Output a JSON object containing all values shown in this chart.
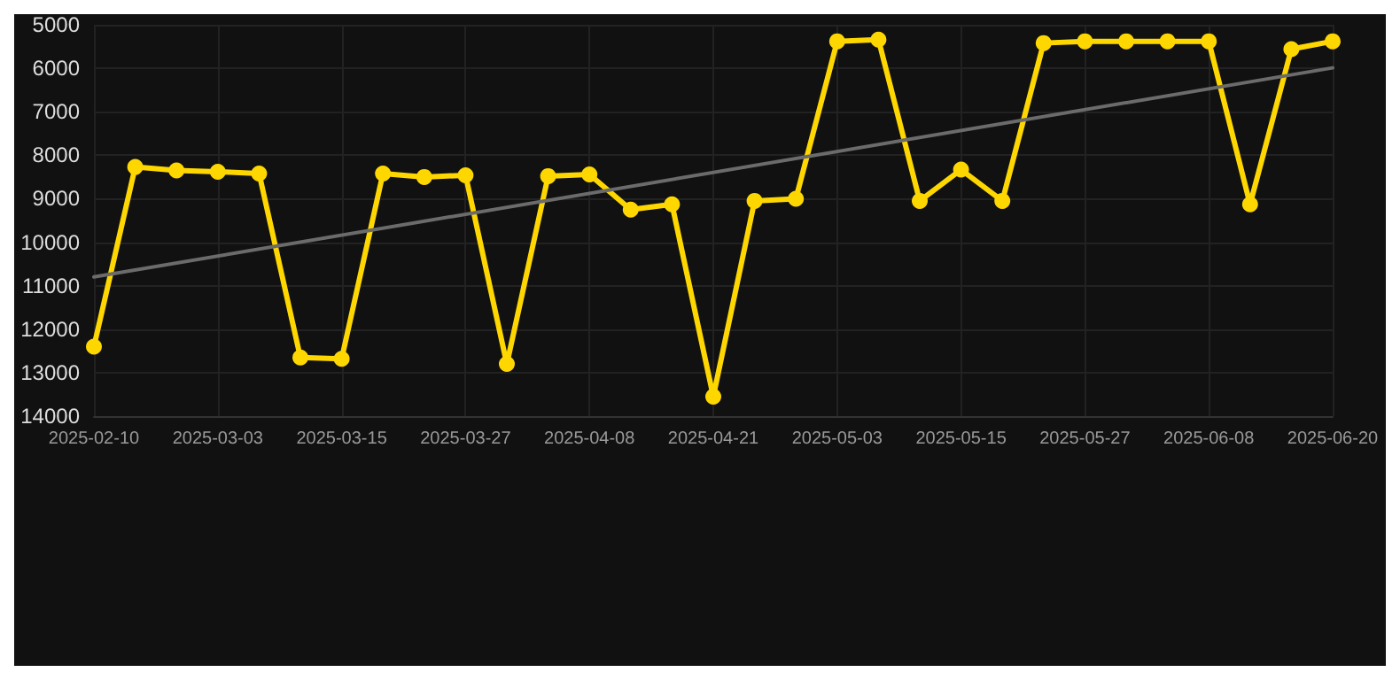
{
  "chart_data": {
    "type": "line",
    "categories": [
      "2025-02-10",
      null,
      null,
      "2025-03-03",
      null,
      null,
      "2025-03-15",
      null,
      null,
      "2025-03-27",
      null,
      null,
      "2025-04-08",
      null,
      null,
      "2025-04-21",
      null,
      null,
      "2025-05-03",
      null,
      null,
      "2025-05-15",
      null,
      null,
      "2025-05-27",
      null,
      null,
      "2025-06-08",
      null,
      null,
      "2025-06-20"
    ],
    "series": [
      {
        "color": "#ffd700",
        "marker": "circle",
        "values": [
          12400,
          8270,
          8350,
          8380,
          8420,
          12650,
          12680,
          8420,
          8500,
          8460,
          12800,
          8480,
          8440,
          9250,
          9130,
          13550,
          9050,
          9000,
          5380,
          5340,
          9050,
          8330,
          9050,
          5420,
          5380,
          5380,
          5380,
          5380,
          9130,
          5560,
          5380
        ]
      },
      {
        "color": "#6b6b6b",
        "marker": "none",
        "values": [
          10800,
          null,
          null,
          null,
          null,
          null,
          null,
          null,
          null,
          null,
          null,
          null,
          null,
          null,
          null,
          null,
          null,
          null,
          null,
          null,
          null,
          null,
          null,
          null,
          null,
          null,
          null,
          null,
          null,
          null,
          5990
        ]
      }
    ],
    "ylim": [
      14000,
      5000
    ],
    "yticks": [
      5000,
      6000,
      7000,
      8000,
      9000,
      10000,
      11000,
      12000,
      13000,
      14000
    ],
    "grid": true,
    "line_style": "solid"
  }
}
